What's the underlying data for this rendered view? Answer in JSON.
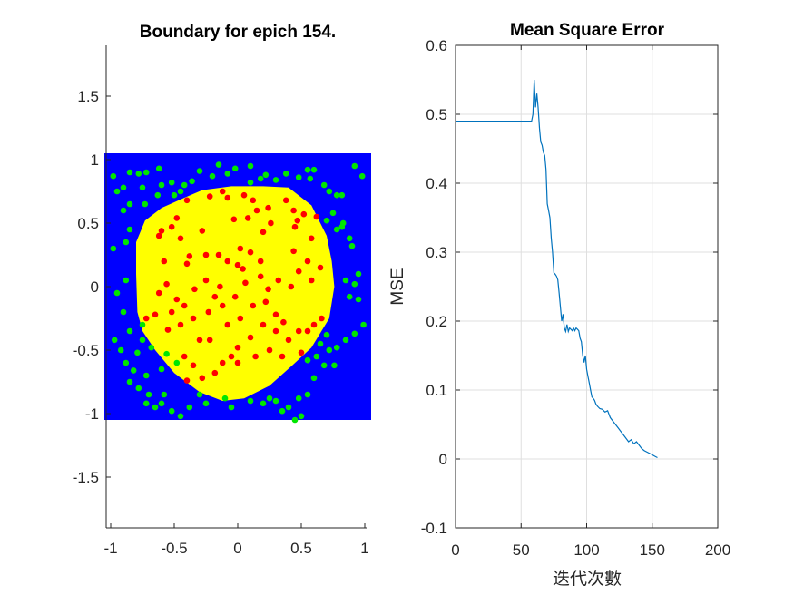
{
  "chart_data": [
    {
      "type": "scatter",
      "title": "Boundary for epich 154.",
      "xlabel": "",
      "ylabel": "",
      "xlim": [
        -1.02,
        1.02
      ],
      "ylim": [
        -1.9,
        1.9
      ],
      "x_ticks": [
        "-1",
        "-0.5",
        "0",
        "0.5",
        "1"
      ],
      "x_tick_values": [
        -1,
        -0.5,
        0,
        0.5,
        1
      ],
      "y_ticks": [
        "1.5",
        "1",
        "0.5",
        "0",
        "-0.5",
        "-1",
        "-1.5"
      ],
      "y_tick_values": [
        1.5,
        1,
        0.5,
        0,
        -0.5,
        -1,
        -1.5
      ],
      "grid": false,
      "colors": {
        "region_outside": "#0000ff",
        "region_inside": "#ffff00",
        "class_outside": "#00e600",
        "class_inside": "#ff0000"
      },
      "boundary_region": {
        "x_range": [
          -1.05,
          1.05
        ],
        "y_range": [
          -1.05,
          1.05
        ]
      },
      "decision_boundary": [
        [
          -0.79,
          -0.2
        ],
        [
          -0.8,
          0.1
        ],
        [
          -0.8,
          0.35
        ],
        [
          -0.73,
          0.52
        ],
        [
          -0.6,
          0.62
        ],
        [
          -0.42,
          0.7
        ],
        [
          -0.28,
          0.76
        ],
        [
          -0.05,
          0.79
        ],
        [
          0.2,
          0.79
        ],
        [
          0.4,
          0.78
        ],
        [
          0.58,
          0.64
        ],
        [
          0.7,
          0.4
        ],
        [
          0.74,
          0.2
        ],
        [
          0.76,
          0.0
        ],
        [
          0.72,
          -0.25
        ],
        [
          0.58,
          -0.48
        ],
        [
          0.43,
          -0.62
        ],
        [
          0.25,
          -0.78
        ],
        [
          0.05,
          -0.88
        ],
        [
          -0.12,
          -0.9
        ],
        [
          -0.3,
          -0.83
        ],
        [
          -0.5,
          -0.68
        ],
        [
          -0.65,
          -0.5
        ],
        [
          -0.75,
          -0.35
        ]
      ],
      "series": [
        {
          "name": "",
          "color": "#ff0000",
          "points": [
            [
              -0.48,
              0.54
            ],
            [
              -0.62,
              0.4
            ],
            [
              -0.52,
              0.47
            ],
            [
              -0.4,
              0.68
            ],
            [
              -0.6,
              0.44
            ],
            [
              -0.45,
              0.38
            ],
            [
              -0.22,
              0.71
            ],
            [
              -0.12,
              0.75
            ],
            [
              -0.08,
              0.7
            ],
            [
              0.05,
              0.72
            ],
            [
              0.12,
              0.68
            ],
            [
              -0.03,
              0.53
            ],
            [
              0.08,
              0.54
            ],
            [
              0.15,
              0.6
            ],
            [
              0.24,
              0.62
            ],
            [
              0.26,
              0.5
            ],
            [
              0.2,
              0.43
            ],
            [
              0.38,
              0.68
            ],
            [
              0.44,
              0.6
            ],
            [
              0.52,
              0.57
            ],
            [
              0.47,
              0.52
            ],
            [
              0.62,
              0.55
            ],
            [
              0.45,
              0.47
            ],
            [
              0.44,
              0.28
            ],
            [
              0.58,
              0.38
            ],
            [
              0.55,
              0.2
            ],
            [
              0.48,
              0.12
            ],
            [
              0.65,
              0.15
            ],
            [
              0.58,
              0.05
            ],
            [
              0.42,
              0.0
            ],
            [
              0.32,
              0.05
            ],
            [
              0.24,
              -0.02
            ],
            [
              0.18,
              0.2
            ],
            [
              0.1,
              0.27
            ],
            [
              0.02,
              0.3
            ],
            [
              -0.08,
              0.2
            ],
            [
              0.0,
              0.17
            ],
            [
              0.04,
              0.14
            ],
            [
              -0.15,
              0.25
            ],
            [
              -0.25,
              0.25
            ],
            [
              -0.38,
              0.24
            ],
            [
              -0.4,
              0.18
            ],
            [
              -0.58,
              0.2
            ],
            [
              -0.56,
              0.02
            ],
            [
              -0.62,
              -0.05
            ],
            [
              -0.48,
              -0.1
            ],
            [
              -0.52,
              -0.2
            ],
            [
              -0.65,
              -0.22
            ],
            [
              -0.72,
              -0.25
            ],
            [
              -0.42,
              -0.15
            ],
            [
              -0.34,
              -0.02
            ],
            [
              -0.25,
              0.05
            ],
            [
              -0.14,
              0.0
            ],
            [
              -0.18,
              -0.08
            ],
            [
              -0.12,
              -0.15
            ],
            [
              -0.23,
              -0.2
            ],
            [
              -0.35,
              -0.25
            ],
            [
              -0.45,
              -0.3
            ],
            [
              -0.55,
              -0.34
            ],
            [
              -0.3,
              -0.42
            ],
            [
              -0.22,
              -0.42
            ],
            [
              -0.08,
              -0.3
            ],
            [
              0.02,
              -0.25
            ],
            [
              0.12,
              -0.15
            ],
            [
              0.22,
              -0.12
            ],
            [
              0.3,
              -0.22
            ],
            [
              0.36,
              -0.28
            ],
            [
              0.4,
              -0.42
            ],
            [
              0.48,
              -0.35
            ],
            [
              0.55,
              -0.35
            ],
            [
              0.6,
              -0.3
            ],
            [
              0.66,
              -0.25
            ],
            [
              0.5,
              -0.52
            ],
            [
              0.3,
              -0.35
            ],
            [
              0.2,
              -0.3
            ],
            [
              0.1,
              -0.4
            ],
            [
              0.0,
              -0.48
            ],
            [
              -0.05,
              -0.55
            ],
            [
              -0.12,
              -0.6
            ],
            [
              0.0,
              -0.6
            ],
            [
              -0.18,
              -0.68
            ],
            [
              -0.28,
              -0.72
            ],
            [
              -0.4,
              -0.74
            ],
            [
              -0.42,
              -0.55
            ],
            [
              -0.35,
              -0.62
            ],
            [
              0.14,
              -0.55
            ],
            [
              0.25,
              -0.5
            ],
            [
              0.35,
              -0.55
            ],
            [
              -0.02,
              -0.08
            ],
            [
              0.06,
              0.03
            ],
            [
              0.18,
              0.08
            ],
            [
              -0.28,
              0.44
            ]
          ]
        },
        {
          "name": "",
          "color": "#00e600",
          "points": [
            [
              -0.98,
              0.87
            ],
            [
              -0.9,
              0.78
            ],
            [
              -0.85,
              0.9
            ],
            [
              -0.78,
              0.89
            ],
            [
              -0.72,
              0.9
            ],
            [
              -0.62,
              0.93
            ],
            [
              -0.52,
              0.82
            ],
            [
              -0.42,
              0.8
            ],
            [
              -0.36,
              0.83
            ],
            [
              -0.3,
              0.91
            ],
            [
              -0.15,
              0.96
            ],
            [
              -0.08,
              0.89
            ],
            [
              -0.02,
              0.93
            ],
            [
              0.1,
              0.95
            ],
            [
              0.22,
              0.88
            ],
            [
              0.3,
              0.84
            ],
            [
              0.38,
              0.89
            ],
            [
              0.48,
              0.86
            ],
            [
              0.55,
              0.92
            ],
            [
              0.57,
              0.85
            ],
            [
              0.6,
              0.92
            ],
            [
              0.68,
              0.8
            ],
            [
              0.72,
              0.75
            ],
            [
              0.78,
              0.72
            ],
            [
              0.82,
              0.72
            ],
            [
              0.92,
              0.95
            ],
            [
              0.98,
              0.87
            ],
            [
              0.83,
              0.5
            ],
            [
              0.82,
              0.47
            ],
            [
              0.78,
              0.45
            ],
            [
              0.88,
              0.38
            ],
            [
              0.9,
              0.32
            ],
            [
              0.95,
              0.1
            ],
            [
              0.95,
              -0.1
            ],
            [
              0.99,
              -0.3
            ],
            [
              0.92,
              -0.37
            ],
            [
              0.85,
              -0.42
            ],
            [
              0.78,
              -0.48
            ],
            [
              0.72,
              -0.5
            ],
            [
              0.68,
              -0.62
            ],
            [
              0.76,
              -0.62
            ],
            [
              0.6,
              -0.72
            ],
            [
              0.55,
              -0.85
            ],
            [
              0.48,
              -0.88
            ],
            [
              0.5,
              -1.02
            ],
            [
              0.45,
              -1.05
            ],
            [
              0.35,
              -0.98
            ],
            [
              0.25,
              -0.88
            ],
            [
              0.2,
              -0.92
            ],
            [
              0.1,
              -0.9
            ],
            [
              -0.05,
              -0.95
            ],
            [
              -0.1,
              -0.88
            ],
            [
              -0.25,
              -0.92
            ],
            [
              -0.38,
              -0.95
            ],
            [
              -0.45,
              -1.02
            ],
            [
              -0.52,
              -0.98
            ],
            [
              -0.6,
              -0.92
            ],
            [
              -0.65,
              -0.95
            ],
            [
              -0.7,
              -0.85
            ],
            [
              -0.78,
              -0.8
            ],
            [
              -0.85,
              -0.75
            ],
            [
              -0.88,
              -0.6
            ],
            [
              -0.92,
              -0.5
            ],
            [
              -0.97,
              -0.42
            ],
            [
              -0.85,
              -0.35
            ],
            [
              -0.75,
              -0.3
            ],
            [
              -0.9,
              -0.2
            ],
            [
              -0.95,
              -0.05
            ],
            [
              -0.88,
              0.05
            ],
            [
              -0.98,
              0.3
            ],
            [
              -0.88,
              0.35
            ],
            [
              -0.85,
              0.45
            ],
            [
              -0.9,
              0.6
            ],
            [
              -0.85,
              0.65
            ],
            [
              -0.95,
              0.75
            ],
            [
              -0.73,
              0.65
            ],
            [
              -0.63,
              0.72
            ],
            [
              -0.56,
              -0.53
            ],
            [
              -0.48,
              -0.6
            ],
            [
              -0.6,
              -0.65
            ],
            [
              -0.72,
              -0.7
            ],
            [
              -0.82,
              -0.66
            ],
            [
              -0.68,
              -0.48
            ],
            [
              -0.75,
              -0.42
            ],
            [
              -0.79,
              -0.52
            ],
            [
              0.62,
              -0.55
            ],
            [
              0.55,
              -0.58
            ],
            [
              0.65,
              -0.45
            ],
            [
              0.7,
              -0.38
            ],
            [
              0.85,
              0.05
            ],
            [
              0.88,
              -0.08
            ],
            [
              0.92,
              0.02
            ],
            [
              0.75,
              0.58
            ],
            [
              0.7,
              0.52
            ],
            [
              -0.5,
              0.72
            ],
            [
              -0.45,
              0.75
            ],
            [
              0.18,
              0.85
            ],
            [
              0.1,
              0.82
            ],
            [
              -0.2,
              0.87
            ],
            [
              -0.6,
              0.8
            ],
            [
              -0.75,
              0.78
            ],
            [
              0.4,
              -0.95
            ],
            [
              0.3,
              -0.9
            ],
            [
              -0.3,
              -0.85
            ],
            [
              -0.58,
              -0.85
            ],
            [
              -0.72,
              -0.92
            ]
          ]
        }
      ]
    },
    {
      "type": "line",
      "title": "Mean Square Error",
      "xlabel": "迭代次數",
      "ylabel": "MSE",
      "xlim": [
        0,
        200
      ],
      "ylim": [
        -0.1,
        0.6
      ],
      "x_ticks": [
        "0",
        "50",
        "100",
        "150",
        "200"
      ],
      "x_tick_values": [
        0,
        50,
        100,
        150,
        200
      ],
      "y_ticks": [
        "0.6",
        "0.5",
        "0.4",
        "0.3",
        "0.2",
        "0.1",
        "0",
        "-0.1"
      ],
      "y_tick_values": [
        0.6,
        0.5,
        0.4,
        0.3,
        0.2,
        0.1,
        0,
        -0.1
      ],
      "grid": true,
      "series": [
        {
          "name": "",
          "color": "#0072bd",
          "x": [
            0,
            20,
            40,
            56,
            58,
            59,
            60,
            61,
            62,
            63,
            64,
            65,
            66,
            67,
            68,
            69,
            70,
            71,
            72,
            73,
            74,
            75,
            76,
            77,
            78,
            79,
            80,
            81,
            82,
            83,
            84,
            85,
            86,
            87,
            88,
            89,
            90,
            91,
            92,
            93,
            94,
            95,
            96,
            97,
            98,
            99,
            100,
            101,
            102,
            103,
            104,
            105,
            106,
            107,
            108,
            109,
            110,
            112,
            114,
            116,
            118,
            120,
            122,
            124,
            126,
            128,
            130,
            132,
            134,
            136,
            138,
            140,
            142,
            144,
            146,
            148,
            150,
            152,
            154
          ],
          "y": [
            0.49,
            0.49,
            0.49,
            0.49,
            0.49,
            0.5,
            0.55,
            0.51,
            0.53,
            0.51,
            0.48,
            0.46,
            0.455,
            0.445,
            0.44,
            0.42,
            0.37,
            0.36,
            0.35,
            0.32,
            0.3,
            0.27,
            0.268,
            0.265,
            0.26,
            0.24,
            0.22,
            0.2,
            0.21,
            0.19,
            0.185,
            0.195,
            0.185,
            0.19,
            0.188,
            0.186,
            0.19,
            0.186,
            0.19,
            0.188,
            0.186,
            0.175,
            0.17,
            0.15,
            0.14,
            0.15,
            0.13,
            0.12,
            0.11,
            0.1,
            0.09,
            0.088,
            0.085,
            0.08,
            0.077,
            0.075,
            0.073,
            0.072,
            0.068,
            0.07,
            0.06,
            0.055,
            0.05,
            0.045,
            0.04,
            0.035,
            0.03,
            0.025,
            0.028,
            0.022,
            0.025,
            0.02,
            0.015,
            0.012,
            0.01,
            0.008,
            0.006,
            0.004,
            0.002
          ]
        }
      ]
    }
  ]
}
